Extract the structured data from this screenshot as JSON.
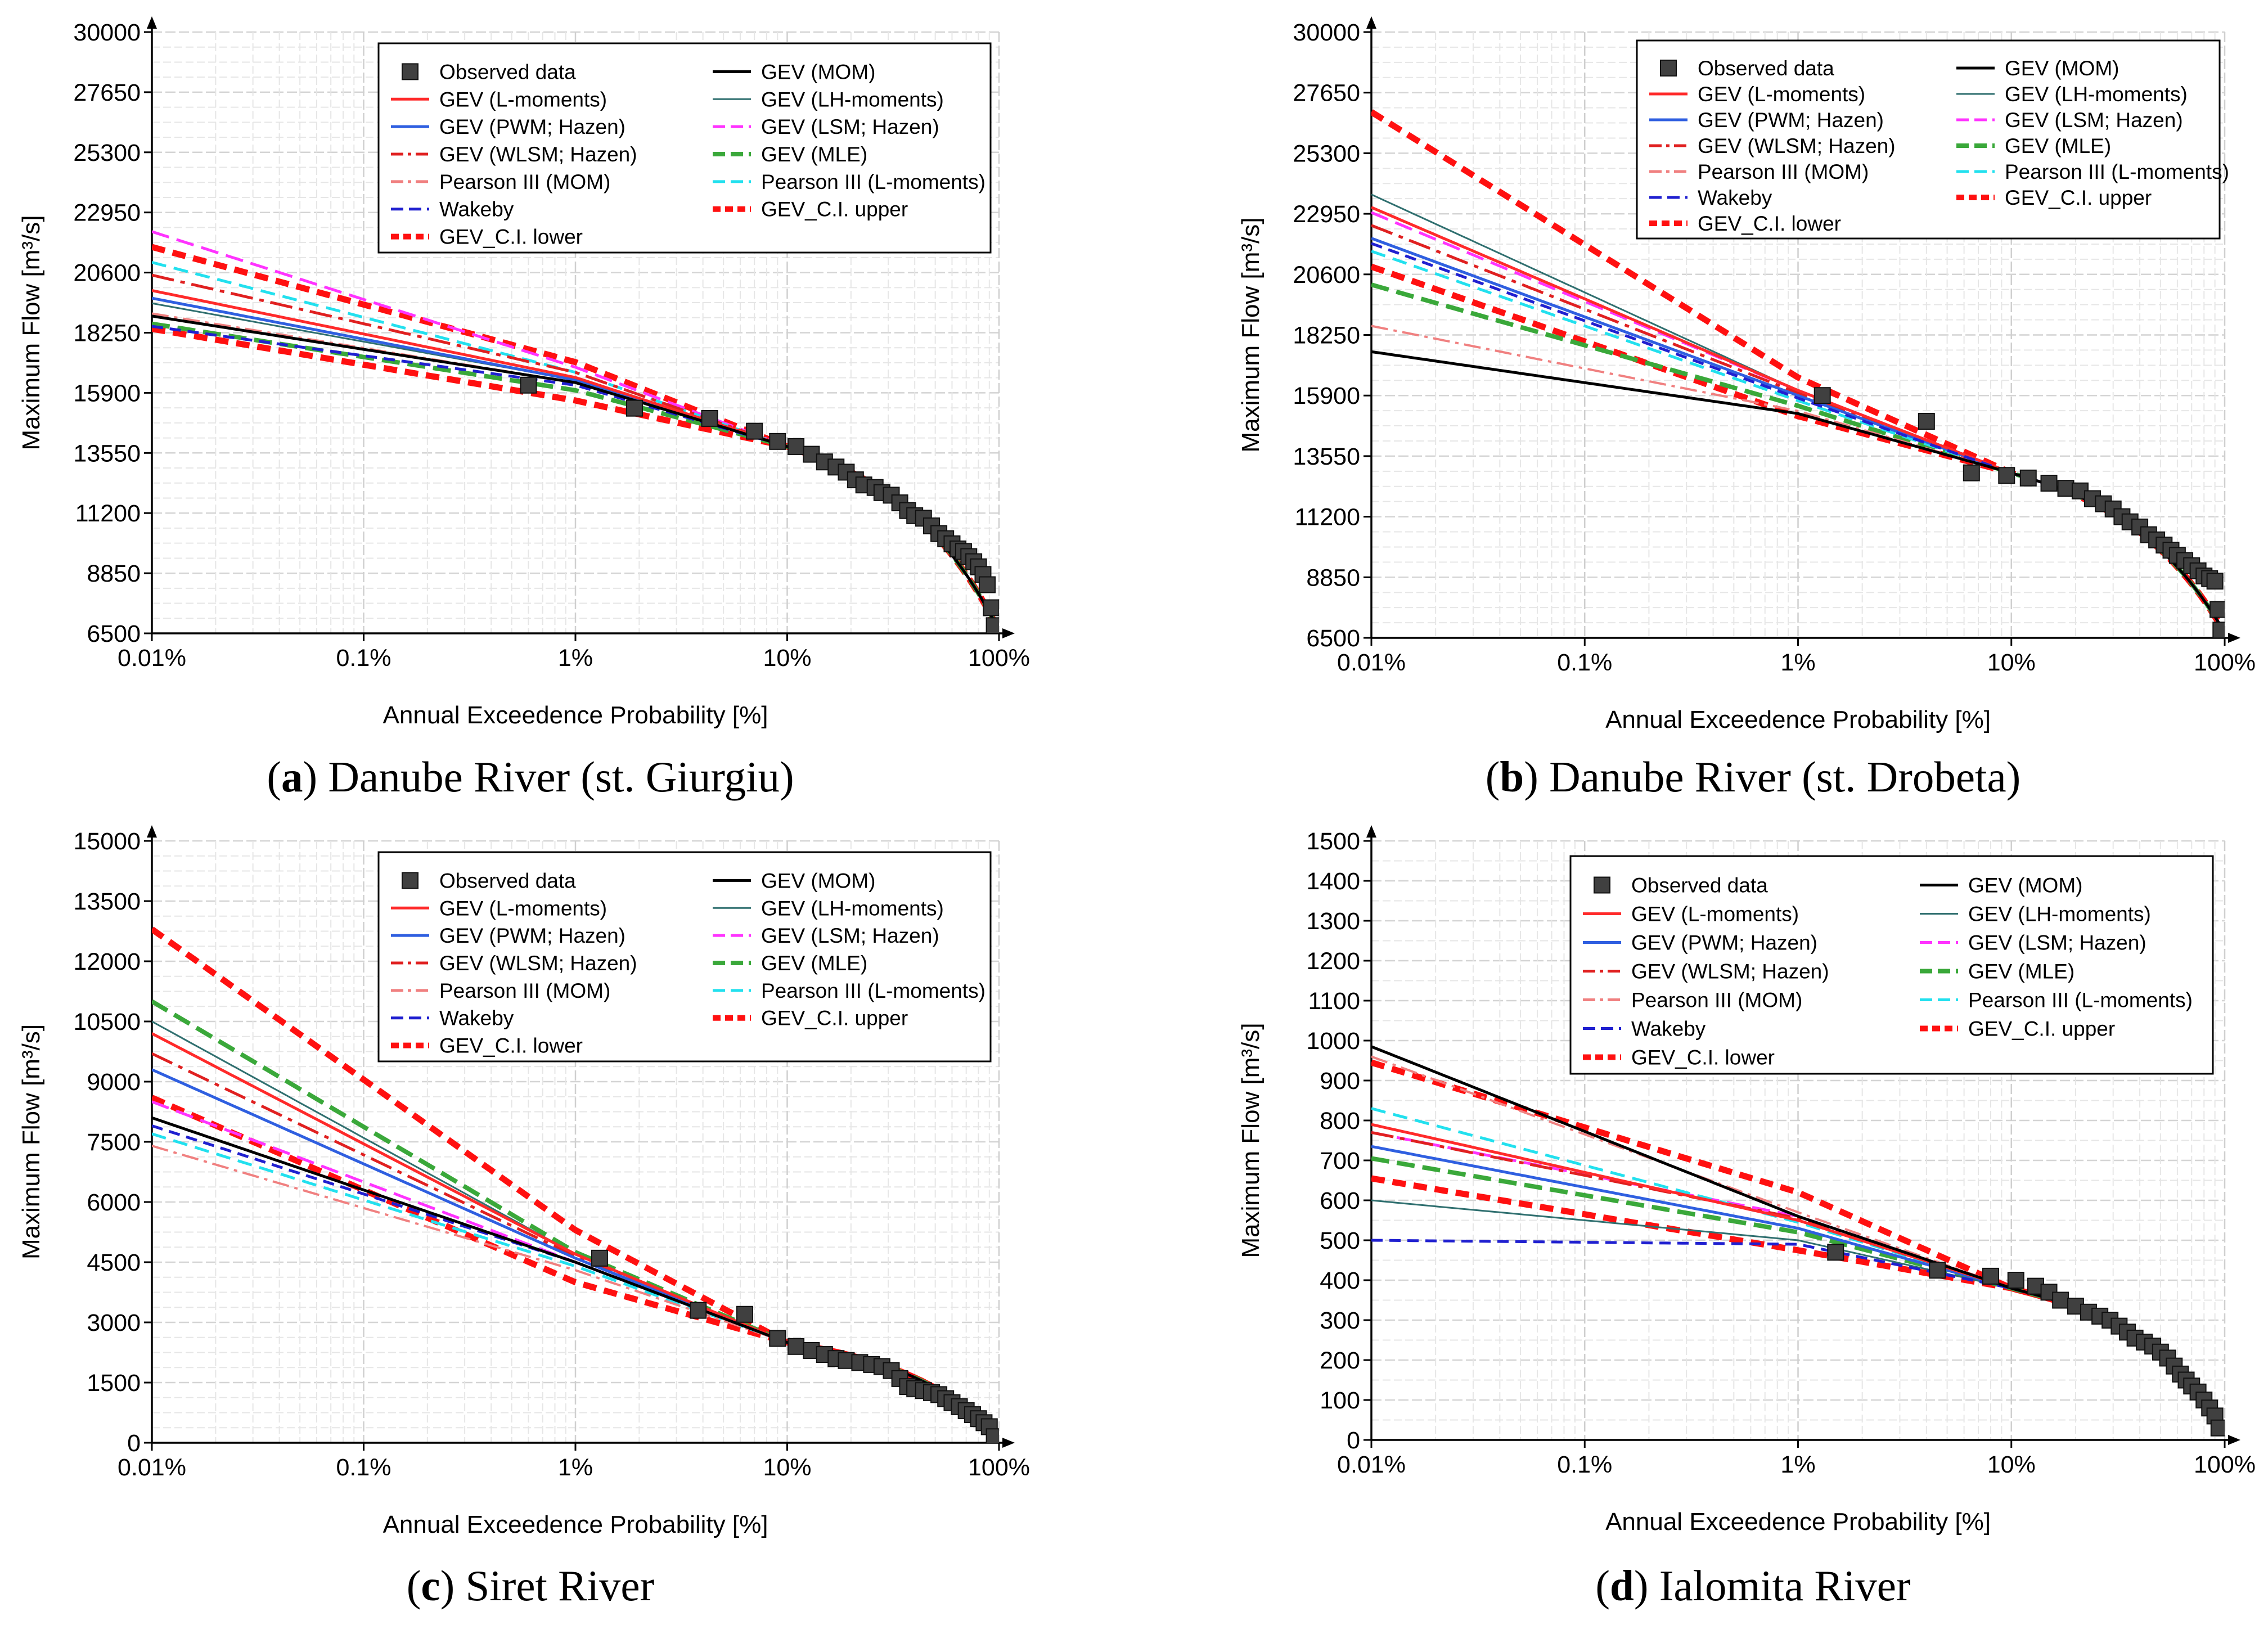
{
  "x_label": "Annual Exceedence Probability [%]",
  "y_label": "Maximum Flow [m³/s]",
  "x_ticks": [
    "0.01%",
    "0.1%",
    "1%",
    "10%",
    "100%"
  ],
  "legend": [
    {
      "key": "obs",
      "label": "Observed data",
      "color": "#404040",
      "kind": "marker"
    },
    {
      "key": "gev_mom",
      "label": "GEV (MOM)",
      "color": "#000000",
      "kind": "solid"
    },
    {
      "key": "gev_lmom",
      "label": "GEV (L-moments)",
      "color": "#ff2a2a",
      "kind": "solid"
    },
    {
      "key": "gev_lh",
      "label": "GEV (LH-moments)",
      "color": "#2f6f6f",
      "kind": "thin"
    },
    {
      "key": "gev_pwm",
      "label": "GEV (PWM; Hazen)",
      "color": "#2f5fe0",
      "kind": "solid"
    },
    {
      "key": "gev_lsm",
      "label": "GEV (LSM; Hazen)",
      "color": "#ff33ff",
      "kind": "dash"
    },
    {
      "key": "gev_wlsm",
      "label": "GEV (WLSM; Hazen)",
      "color": "#e02020",
      "kind": "dashdot"
    },
    {
      "key": "gev_mle",
      "label": "GEV (MLE)",
      "color": "#3aa83a",
      "kind": "dashthick"
    },
    {
      "key": "p3_mom",
      "label": "Pearson III (MOM)",
      "color": "#f08080",
      "kind": "dashdot"
    },
    {
      "key": "p3_lmom",
      "label": "Pearson III (L-moments)",
      "color": "#22e0ee",
      "kind": "dash"
    },
    {
      "key": "wakeby",
      "label": "Wakeby",
      "color": "#2020d0",
      "kind": "dash"
    },
    {
      "key": "ci_upper",
      "label": "GEV_C.I. upper",
      "color": "#ff1010",
      "kind": "dotthick"
    },
    {
      "key": "ci_lower",
      "label": "GEV_C.I. lower",
      "color": "#ff1010",
      "kind": "dotthick"
    }
  ],
  "chart_data": [
    {
      "type": "line",
      "caption_letter": "a",
      "caption_text": ") Danube River (st. Giurgiu)",
      "y_ticks": [
        "30000",
        "27650",
        "25300",
        "22950",
        "20600",
        "18250",
        "15900",
        "13550",
        "11200",
        "8850",
        "6500"
      ],
      "ylim": [
        6500,
        30000
      ],
      "end_flow": 6600,
      "xlabel": "Annual Exceedence Probability [%]",
      "ylabel": "Maximum Flow [m³/s]",
      "q01": {
        "gev_mom": 18900,
        "gev_lmom": 19900,
        "gev_lh": 19400,
        "gev_pwm": 19600,
        "gev_lsm": 22200,
        "gev_wlsm": 20500,
        "gev_mle": 18600,
        "p3_mom": 19000,
        "p3_lmom": 21000,
        "wakeby": 18500,
        "ci_upper": 21600,
        "ci_lower": 18400
      },
      "q1": {
        "gev_mom": 16300,
        "gev_lmom": 16500,
        "gev_lh": 16400,
        "gev_pwm": 16400,
        "gev_lsm": 16900,
        "gev_wlsm": 16700,
        "gev_mle": 16000,
        "p3_mom": 16300,
        "p3_lmom": 16700,
        "wakeby": 16200,
        "ci_upper": 17100,
        "ci_lower": 15600
      },
      "q10": 13800,
      "observed": [
        [
          0.6,
          16200
        ],
        [
          1.9,
          15300
        ],
        [
          4.3,
          14900
        ],
        [
          7,
          14400
        ],
        [
          9,
          14000
        ],
        [
          11,
          13800
        ],
        [
          13,
          13500
        ],
        [
          15,
          13200
        ],
        [
          17,
          13000
        ],
        [
          19,
          12800
        ],
        [
          21,
          12500
        ],
        [
          23,
          12300
        ],
        [
          26,
          12200
        ],
        [
          28,
          12000
        ],
        [
          31,
          11900
        ],
        [
          34,
          11600
        ],
        [
          37,
          11300
        ],
        [
          40,
          11100
        ],
        [
          44,
          11000
        ],
        [
          48,
          10700
        ],
        [
          52,
          10400
        ],
        [
          56,
          10200
        ],
        [
          60,
          10000
        ],
        [
          64,
          9800
        ],
        [
          68,
          9700
        ],
        [
          72,
          9500
        ],
        [
          76,
          9300
        ],
        [
          80,
          9100
        ],
        [
          84,
          8800
        ],
        [
          88,
          8400
        ],
        [
          92,
          7500
        ],
        [
          95,
          6800
        ]
      ]
    },
    {
      "type": "line",
      "caption_letter": "b",
      "caption_text": ") Danube River (st. Drobeta)",
      "y_ticks": [
        "30000",
        "27650",
        "25300",
        "22950",
        "20600",
        "18250",
        "15900",
        "13550",
        "11200",
        "8850",
        "6500"
      ],
      "ylim": [
        6500,
        30000
      ],
      "end_flow": 6700,
      "xlabel": "Annual Exceedence Probability [%]",
      "ylabel": "Maximum Flow [m³/s]",
      "q01": {
        "gev_mom": 17600,
        "gev_lmom": 23200,
        "gev_lh": 23700,
        "gev_pwm": 22000,
        "gev_lsm": 23000,
        "gev_wlsm": 22500,
        "gev_mle": 20200,
        "p3_mom": 18600,
        "p3_lmom": 21500,
        "wakeby": 21800,
        "ci_upper": 26900,
        "ci_lower": 20900
      },
      "q1": {
        "gev_mom": 15200,
        "gev_lmom": 16100,
        "gev_lh": 16100,
        "gev_pwm": 15900,
        "gev_lsm": 16100,
        "gev_wlsm": 16000,
        "gev_mle": 15500,
        "p3_mom": 15300,
        "p3_lmom": 15700,
        "wakeby": 15800,
        "ci_upper": 16600,
        "ci_lower": 15100
      },
      "q10": 12900,
      "observed": [
        [
          1.3,
          15900
        ],
        [
          4,
          14900
        ],
        [
          6.5,
          12900
        ],
        [
          9.5,
          12800
        ],
        [
          12,
          12700
        ],
        [
          15,
          12500
        ],
        [
          18,
          12300
        ],
        [
          21,
          12200
        ],
        [
          24,
          11900
        ],
        [
          27,
          11700
        ],
        [
          30,
          11500
        ],
        [
          33,
          11200
        ],
        [
          36,
          11000
        ],
        [
          40,
          10800
        ],
        [
          44,
          10500
        ],
        [
          48,
          10300
        ],
        [
          52,
          10100
        ],
        [
          56,
          9900
        ],
        [
          60,
          9700
        ],
        [
          65,
          9500
        ],
        [
          70,
          9300
        ],
        [
          75,
          9100
        ],
        [
          80,
          8900
        ],
        [
          85,
          8800
        ],
        [
          90,
          8700
        ],
        [
          93,
          7600
        ],
        [
          96,
          6800
        ]
      ]
    },
    {
      "type": "line",
      "caption_letter": "c",
      "caption_text": ") Siret River",
      "y_ticks": [
        "15000",
        "13500",
        "12000",
        "10500",
        "9000",
        "7500",
        "6000",
        "4500",
        "3000",
        "1500",
        "0"
      ],
      "ylim": [
        0,
        15000
      ],
      "end_flow": 150,
      "xlabel": "Annual Exceedence Probability [%]",
      "ylabel": "Maximum Flow [m³/s]",
      "q01": {
        "gev_mom": 8100,
        "gev_lmom": 10200,
        "gev_lh": 10500,
        "gev_pwm": 9300,
        "gev_lsm": 8500,
        "gev_wlsm": 9700,
        "gev_mle": 11000,
        "p3_mom": 7400,
        "p3_lmom": 7700,
        "wakeby": 7900,
        "ci_upper": 12800,
        "ci_lower": 8600
      },
      "q1": {
        "gev_mom": 4500,
        "gev_lmom": 4700,
        "gev_lh": 4700,
        "gev_pwm": 4600,
        "gev_lsm": 4500,
        "gev_wlsm": 4650,
        "gev_mle": 4750,
        "p3_mom": 4300,
        "p3_lmom": 4400,
        "wakeby": 4500,
        "ci_upper": 5300,
        "ci_lower": 4000
      },
      "q10": 2500,
      "observed": [
        [
          1.3,
          4600
        ],
        [
          3.8,
          3300
        ],
        [
          6.3,
          3200
        ],
        [
          9,
          2600
        ],
        [
          11,
          2400
        ],
        [
          13,
          2300
        ],
        [
          15,
          2200
        ],
        [
          17,
          2100
        ],
        [
          19,
          2050
        ],
        [
          22,
          2000
        ],
        [
          25,
          1950
        ],
        [
          28,
          1900
        ],
        [
          31,
          1800
        ],
        [
          34,
          1600
        ],
        [
          37,
          1400
        ],
        [
          40,
          1350
        ],
        [
          44,
          1300
        ],
        [
          48,
          1250
        ],
        [
          52,
          1200
        ],
        [
          56,
          1100
        ],
        [
          60,
          1000
        ],
        [
          65,
          900
        ],
        [
          70,
          800
        ],
        [
          75,
          700
        ],
        [
          80,
          600
        ],
        [
          85,
          500
        ],
        [
          90,
          400
        ],
        [
          95,
          150
        ]
      ]
    },
    {
      "type": "line",
      "caption_letter": "d",
      "caption_text": ") Ialomita River",
      "y_ticks": [
        "1500",
        "1400",
        "1300",
        "1200",
        "1100",
        "1000",
        "900",
        "800",
        "700",
        "600",
        "500",
        "400",
        "300",
        "200",
        "100",
        "0"
      ],
      "ylim": [
        0,
        1500
      ],
      "end_flow": 30,
      "xlabel": "Annual Exceedence Probability [%]",
      "ylabel": "Maximum Flow [m³/s]",
      "q01": {
        "gev_mom": 985,
        "gev_lmom": 790,
        "gev_lh": 600,
        "gev_pwm": 735,
        "gev_lsm": 770,
        "gev_wlsm": 770,
        "gev_mle": 705,
        "p3_mom": 960,
        "p3_lmom": 830,
        "wakeby": 500,
        "ci_upper": 945,
        "ci_lower": 655
      },
      "q1": {
        "gev_mom": 560,
        "gev_lmom": 550,
        "gev_lh": 500,
        "gev_pwm": 530,
        "gev_lsm": 560,
        "gev_wlsm": 555,
        "gev_mle": 520,
        "p3_mom": 570,
        "p3_lmom": 545,
        "wakeby": 490,
        "ci_upper": 620,
        "ci_lower": 475
      },
      "q10": 380,
      "observed": [
        [
          1.5,
          470
        ],
        [
          4.5,
          425
        ],
        [
          8,
          410
        ],
        [
          10.5,
          400
        ],
        [
          13,
          385
        ],
        [
          15,
          370
        ],
        [
          17,
          350
        ],
        [
          20,
          335
        ],
        [
          23,
          320
        ],
        [
          26,
          310
        ],
        [
          29,
          300
        ],
        [
          32,
          285
        ],
        [
          35,
          270
        ],
        [
          38,
          255
        ],
        [
          42,
          245
        ],
        [
          46,
          235
        ],
        [
          50,
          220
        ],
        [
          54,
          205
        ],
        [
          58,
          185
        ],
        [
          62,
          165
        ],
        [
          66,
          150
        ],
        [
          70,
          135
        ],
        [
          75,
          120
        ],
        [
          80,
          100
        ],
        [
          85,
          80
        ],
        [
          90,
          60
        ],
        [
          94,
          30
        ]
      ]
    }
  ]
}
